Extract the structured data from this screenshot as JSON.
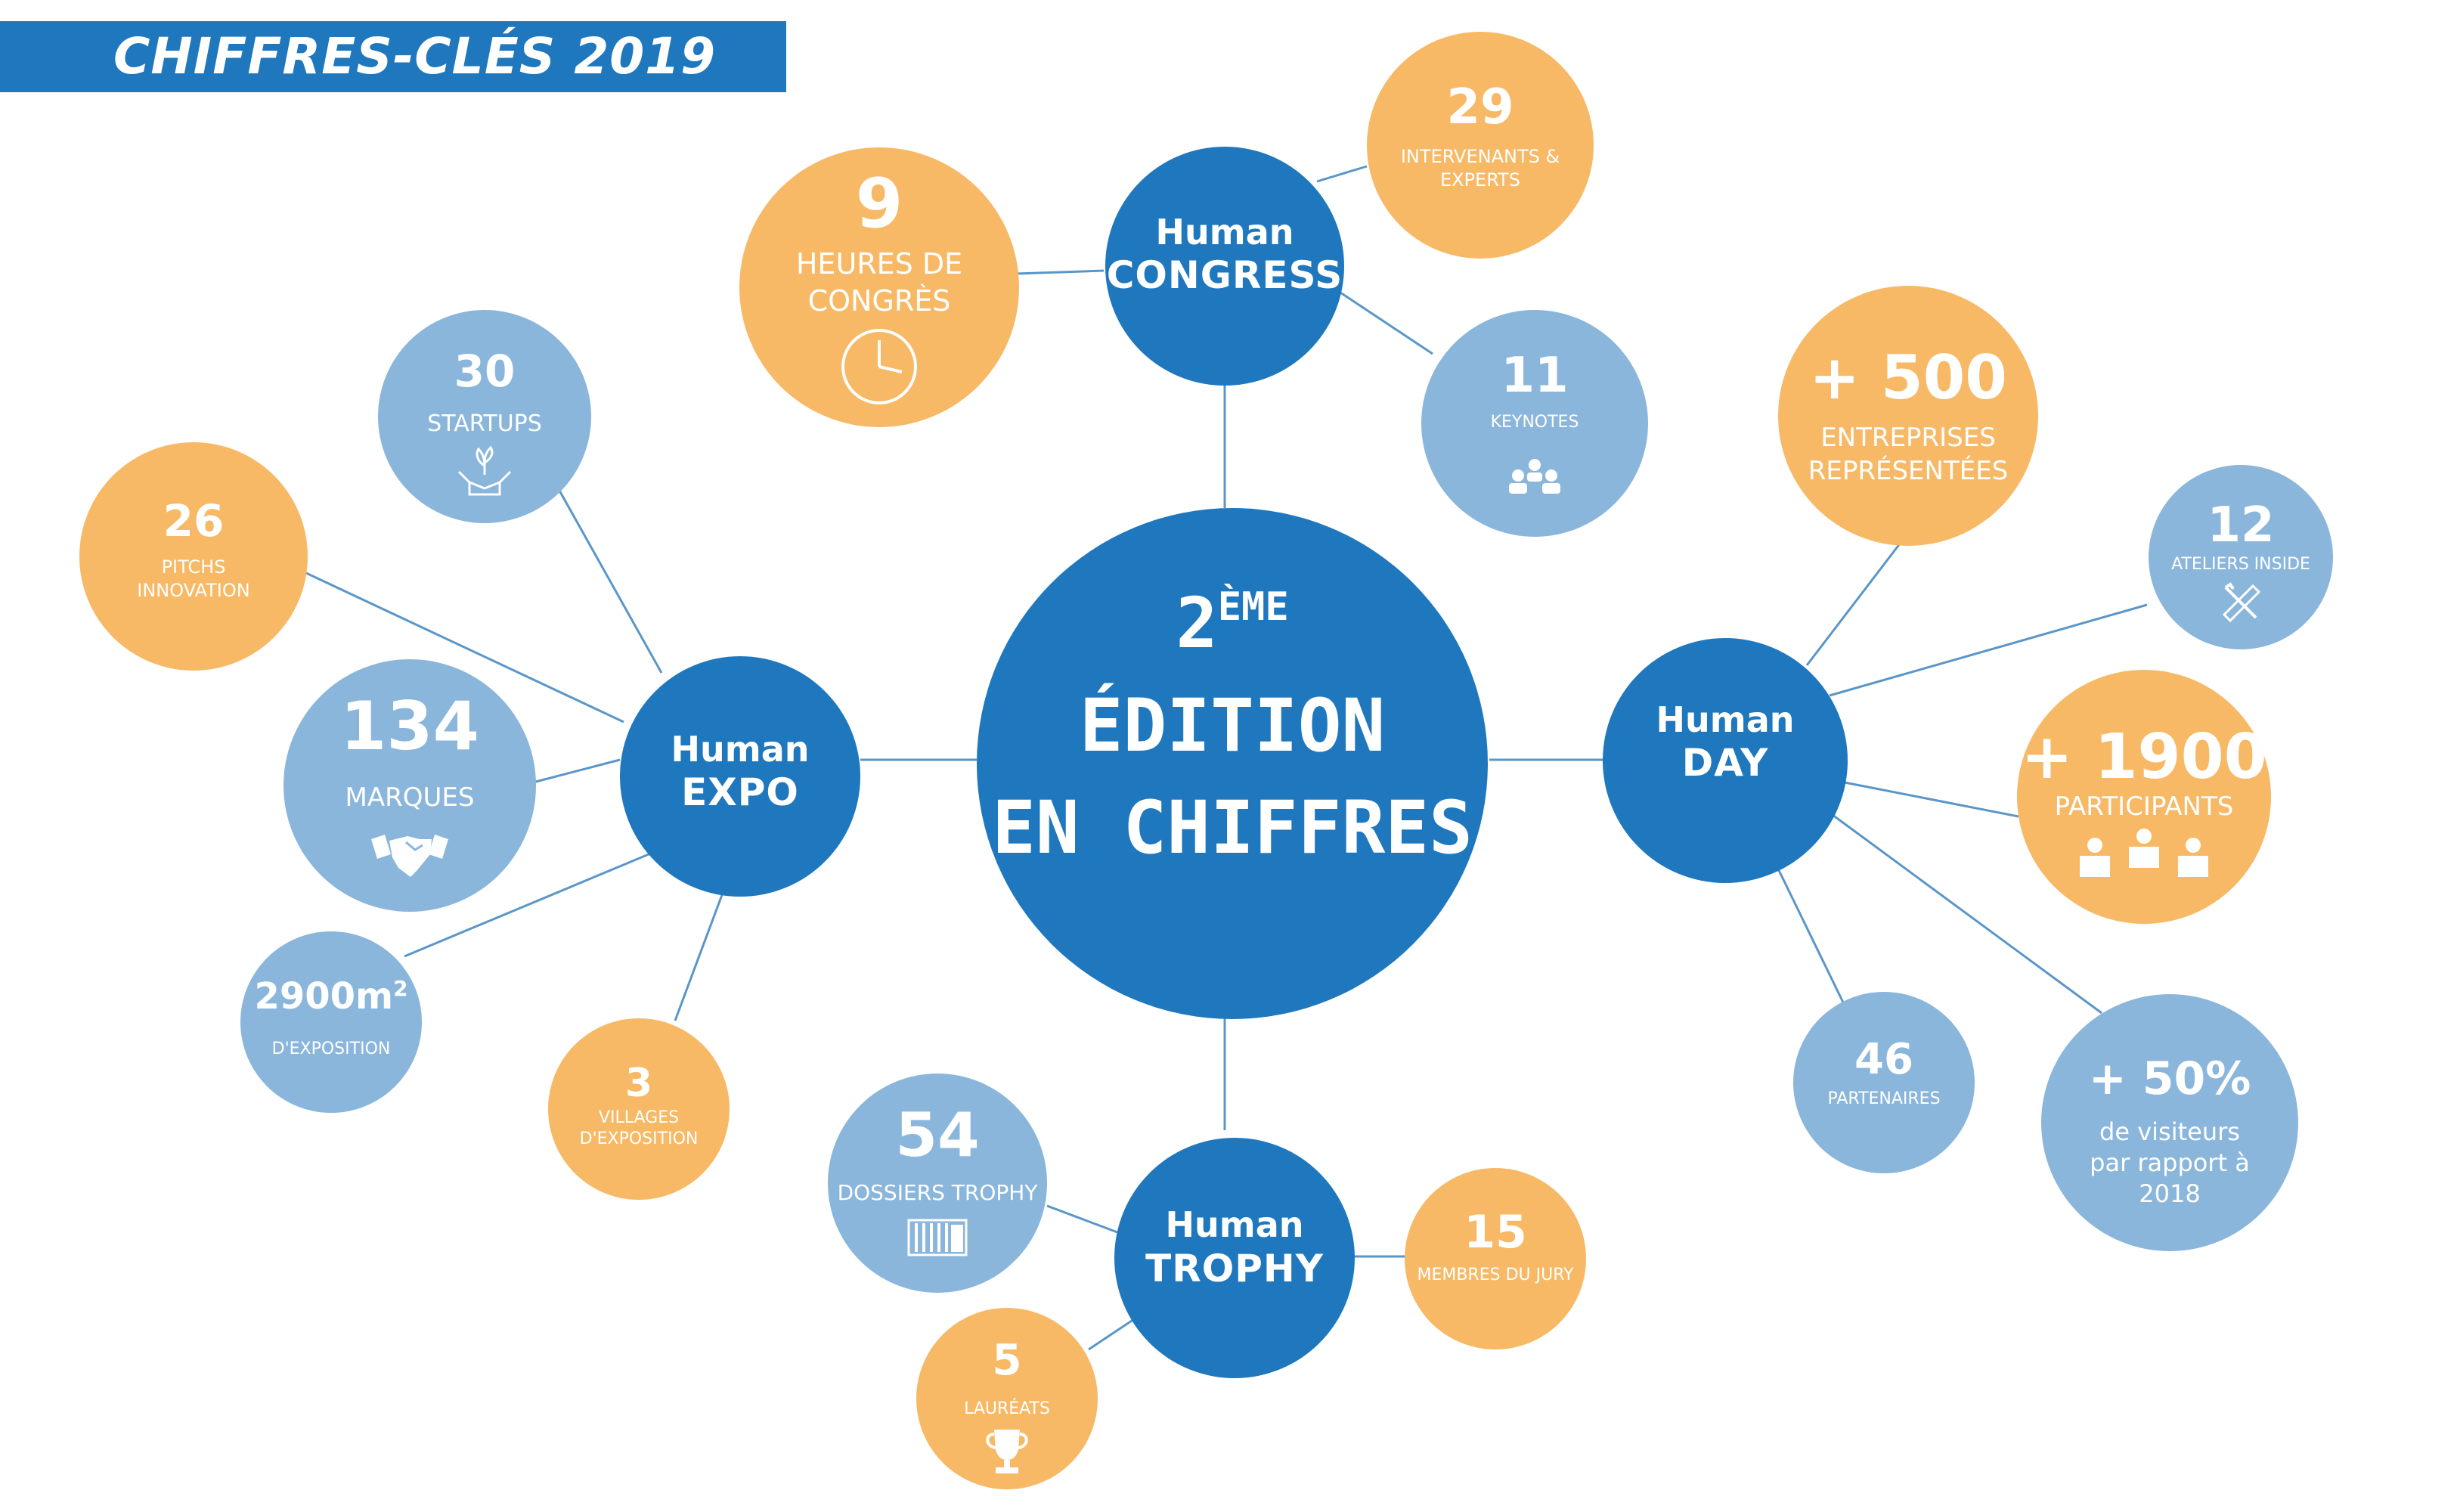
{
  "header": {
    "title": "CHIFFRES-CLÉS 2019",
    "color": "#1f78bd"
  },
  "colors": {
    "orange": "#f7b966",
    "light_blue": "#8ab6dc",
    "dark_blue": "#1f78bd",
    "line": "#5a96c8"
  },
  "centre": {
    "line1": "2",
    "line1_sup": "ÈME",
    "line2": "ÉDITION",
    "line3": "EN CHIFFRES"
  },
  "hubs": {
    "congress": {
      "line1": "Human",
      "line2": "CONGRESS"
    },
    "expo": {
      "line1": "Human",
      "line2": "EXPO"
    },
    "day": {
      "line1": "Human",
      "line2": "DAY"
    },
    "trophy": {
      "line1": "Human",
      "line2": "TROPHY"
    }
  },
  "stats": {
    "heures": {
      "value": "9",
      "label": "HEURES DE CONGRÈS",
      "icon": "clock-icon"
    },
    "intervenants": {
      "value": "29",
      "label": "INTERVENANTS & EXPERTS"
    },
    "keynotes": {
      "value": "11",
      "label": "KEYNOTES",
      "icon": "audience-icon"
    },
    "startups": {
      "value": "30",
      "label": "STARTUPS",
      "icon": "hands-plant-icon"
    },
    "pitchs": {
      "value": "26",
      "label": "PITCHS INNOVATION"
    },
    "marques": {
      "value": "134",
      "label": "MARQUES",
      "icon": "handshake-icon"
    },
    "exposition_value": "2900m",
    "exposition_sup": "2",
    "exposition_label": "D'EXPOSITION",
    "villages": {
      "value": "3",
      "label": "VILLAGES D'EXPOSITION"
    },
    "entreprises": {
      "value": "+ 500",
      "label": "ENTREPRISES REPRÉSENTÉES"
    },
    "ateliers": {
      "value": "12",
      "label": "ATELIERS INSIDE",
      "icon": "ruler-pencil-icon"
    },
    "participants": {
      "value": "+ 1900",
      "label": "PARTICIPANTS",
      "icon": "people-icon"
    },
    "partenaires": {
      "value": "46",
      "label": "PARTENAIRES"
    },
    "visiteurs": {
      "value": "+ 50%",
      "label": "de visiteurs par rapport à 2018"
    },
    "dossiers": {
      "value": "54",
      "label": "DOSSIERS TROPHY",
      "icon": "folders-icon"
    },
    "jury": {
      "value": "15",
      "label": "MEMBRES DU JURY"
    },
    "laureats": {
      "value": "5",
      "label": "LAURÉATS",
      "icon": "trophy-icon"
    }
  }
}
